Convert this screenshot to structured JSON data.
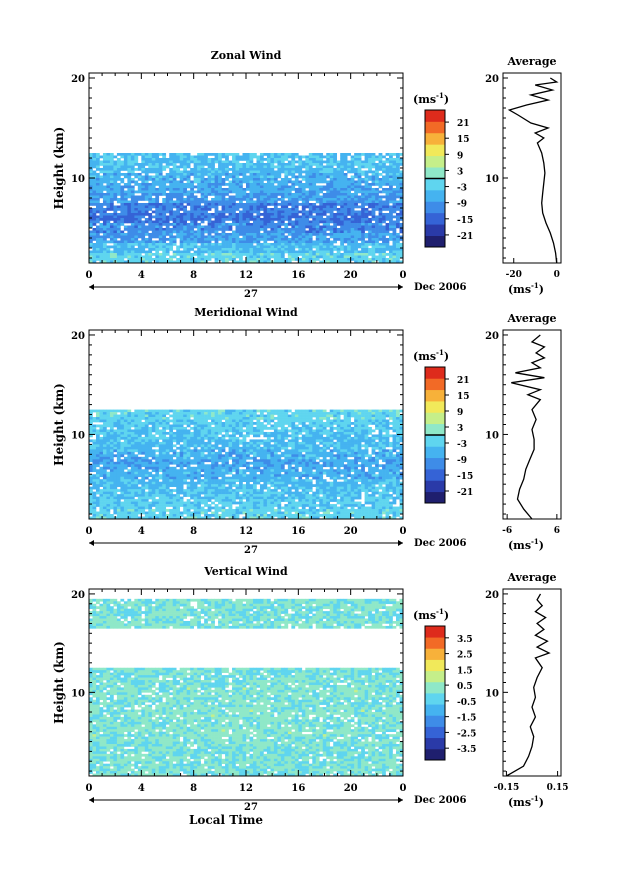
{
  "figure": {
    "date_label": "Dec 2006",
    "day_label": "27",
    "xlabel": "Local Time",
    "units_label": "(ms",
    "units_exp": "-1",
    "avg_title": "Average"
  },
  "colorscale": [
    "#1f1f6e",
    "#2a3aa8",
    "#3563d6",
    "#3e8ce8",
    "#45b3f0",
    "#5fd5ef",
    "#8fe8c8",
    "#c5ef8a",
    "#f1e95a",
    "#f7b13a",
    "#f26a26",
    "#de2b1c"
  ],
  "chart_data": [
    {
      "type": "heatmap",
      "title": "Zonal Wind",
      "ylabel": "Height (km)",
      "xlabel": "",
      "x_ticks": [
        "0",
        "4",
        "8",
        "12",
        "16",
        "20",
        "0"
      ],
      "y_ticks": [
        "10",
        "20"
      ],
      "ylim": [
        1.5,
        20.5
      ],
      "xlim": [
        0,
        24
      ],
      "colorbar": {
        "min": -24,
        "max": 24,
        "ticks": [
          "21",
          "15",
          "9",
          "3",
          "-3",
          "-9",
          "-15",
          "-21"
        ],
        "zero_line": true
      },
      "average": {
        "x_ticks": [
          "-20",
          "0"
        ],
        "xlim": [
          -25,
          2
        ],
        "y_ticks": [
          "10",
          "20"
        ],
        "profile": [
          [
            0,
            1.5
          ],
          [
            -0.5,
            2.5
          ],
          [
            -1.5,
            3.5
          ],
          [
            -3,
            4.5
          ],
          [
            -5,
            5.5
          ],
          [
            -6.5,
            6.5
          ],
          [
            -7,
            7.5
          ],
          [
            -6.5,
            8.5
          ],
          [
            -6,
            9.5
          ],
          [
            -5.5,
            10.5
          ],
          [
            -6,
            11.5
          ],
          [
            -7,
            12.5
          ],
          [
            -9,
            13.5
          ],
          [
            -6,
            14
          ],
          [
            -10,
            14.5
          ],
          [
            -4,
            15
          ],
          [
            -12,
            15.5
          ],
          [
            -18,
            16.3
          ],
          [
            -22,
            16.8
          ],
          [
            -14,
            17.3
          ],
          [
            -4,
            17.8
          ],
          [
            -12,
            18.3
          ],
          [
            -2,
            18.8
          ],
          [
            -10,
            19.3
          ],
          [
            0,
            19.6
          ],
          [
            -3,
            20
          ]
        ]
      },
      "data_rows": [
        {
          "h": 12.0,
          "value": -4
        },
        {
          "h": 11.0,
          "value": -5
        },
        {
          "h": 10.0,
          "value": -6
        },
        {
          "h": 9.0,
          "value": -7
        },
        {
          "h": 8.0,
          "value": -9
        },
        {
          "h": 7.0,
          "value": -11
        },
        {
          "h": 6.0,
          "value": -12
        },
        {
          "h": 5.0,
          "value": -10
        },
        {
          "h": 4.0,
          "value": -8
        },
        {
          "h": 3.0,
          "value": -5
        },
        {
          "h": 2.0,
          "value": -2
        }
      ],
      "data_top": 12.5
    },
    {
      "type": "heatmap",
      "title": "Meridional Wind",
      "ylabel": "Height (km)",
      "xlabel": "",
      "x_ticks": [
        "0",
        "4",
        "8",
        "12",
        "16",
        "20",
        "0"
      ],
      "y_ticks": [
        "10",
        "20"
      ],
      "ylim": [
        1.5,
        20.5
      ],
      "xlim": [
        0,
        24
      ],
      "colorbar": {
        "min": -24,
        "max": 24,
        "ticks": [
          "21",
          "15",
          "9",
          "3",
          "-3",
          "-9",
          "-15",
          "-21"
        ],
        "zero_line": true
      },
      "average": {
        "x_ticks": [
          "-6",
          "6"
        ],
        "xlim": [
          -7,
          7
        ],
        "y_ticks": [
          "10",
          "20"
        ],
        "profile": [
          [
            0,
            1.5
          ],
          [
            -2,
            2.5
          ],
          [
            -3.5,
            3.5
          ],
          [
            -3,
            4.5
          ],
          [
            -2,
            5.5
          ],
          [
            -1.5,
            6.5
          ],
          [
            -0.5,
            7.5
          ],
          [
            0.5,
            8.5
          ],
          [
            0.5,
            9.5
          ],
          [
            0,
            10.5
          ],
          [
            1,
            11.5
          ],
          [
            0,
            12.5
          ],
          [
            2,
            13.5
          ],
          [
            -1,
            14
          ],
          [
            2,
            14.5
          ],
          [
            -5,
            15.2
          ],
          [
            3,
            15.7
          ],
          [
            -4,
            16.2
          ],
          [
            2,
            16.7
          ],
          [
            0,
            17.2
          ],
          [
            3,
            17.7
          ],
          [
            1,
            18.2
          ],
          [
            3,
            18.8
          ],
          [
            0,
            19.3
          ],
          [
            2,
            20
          ]
        ]
      },
      "data_rows": [
        {
          "h": 12.0,
          "value": -2
        },
        {
          "h": 11.0,
          "value": -3
        },
        {
          "h": 10.0,
          "value": -4
        },
        {
          "h": 9.0,
          "value": -5
        },
        {
          "h": 8.0,
          "value": -6
        },
        {
          "h": 7.0,
          "value": -7
        },
        {
          "h": 6.0,
          "value": -6
        },
        {
          "h": 5.0,
          "value": -5
        },
        {
          "h": 4.0,
          "value": -4
        },
        {
          "h": 3.0,
          "value": -3
        },
        {
          "h": 2.0,
          "value": -2
        }
      ],
      "data_top": 12.5
    },
    {
      "type": "heatmap",
      "title": "Vertical Wind",
      "ylabel": "Height (km)",
      "xlabel": "Local Time",
      "x_ticks": [
        "0",
        "4",
        "8",
        "12",
        "16",
        "20",
        "0"
      ],
      "y_ticks": [
        "10",
        "20"
      ],
      "ylim": [
        1.5,
        20.5
      ],
      "xlim": [
        0,
        24
      ],
      "colorbar": {
        "min": -4,
        "max": 4,
        "ticks": [
          "3.5",
          "2.5",
          "1.5",
          "0.5",
          "-0.5",
          "-1.5",
          "-2.5",
          "-3.5"
        ],
        "zero_line": false
      },
      "average": {
        "x_ticks": [
          "-0.15",
          "0.15"
        ],
        "xlim": [
          -0.17,
          0.17
        ],
        "y_ticks": [
          "10",
          "20"
        ],
        "profile": [
          [
            -0.15,
            1.5
          ],
          [
            -0.05,
            2.5
          ],
          [
            -0.02,
            3.5
          ],
          [
            0.0,
            4.5
          ],
          [
            0.01,
            5.5
          ],
          [
            -0.01,
            6.5
          ],
          [
            0.02,
            7.5
          ],
          [
            0.0,
            8.5
          ],
          [
            0.02,
            9.5
          ],
          [
            0.01,
            10.5
          ],
          [
            0.03,
            11.5
          ],
          [
            0.06,
            12.5
          ],
          [
            0.02,
            13.5
          ],
          [
            0.1,
            14
          ],
          [
            0.03,
            14.6
          ],
          [
            0.09,
            15.2
          ],
          [
            0.02,
            15.8
          ],
          [
            0.07,
            16.4
          ],
          [
            0.03,
            17
          ],
          [
            0.08,
            17.6
          ],
          [
            0.02,
            18.2
          ],
          [
            0.06,
            18.8
          ],
          [
            0.03,
            19.4
          ],
          [
            0.05,
            20
          ]
        ]
      },
      "data_rows": [
        {
          "h": 19.0,
          "value": 0.1
        },
        {
          "h": 18.0,
          "value": 0.0
        },
        {
          "h": 17.0,
          "value": 0.1
        },
        {
          "h": 12.0,
          "value": 0.0
        },
        {
          "h": 11.0,
          "value": 0.1
        },
        {
          "h": 10.0,
          "value": 0.2
        },
        {
          "h": 9.0,
          "value": 0.1
        },
        {
          "h": 8.0,
          "value": 0.2
        },
        {
          "h": 7.0,
          "value": 0.1
        },
        {
          "h": 6.0,
          "value": 0.2
        },
        {
          "h": 5.0,
          "value": 0.1
        },
        {
          "h": 4.0,
          "value": 0.0
        },
        {
          "h": 3.0,
          "value": 0.1
        },
        {
          "h": 2.0,
          "value": 0.0
        }
      ],
      "data_top": 12.5
    }
  ]
}
